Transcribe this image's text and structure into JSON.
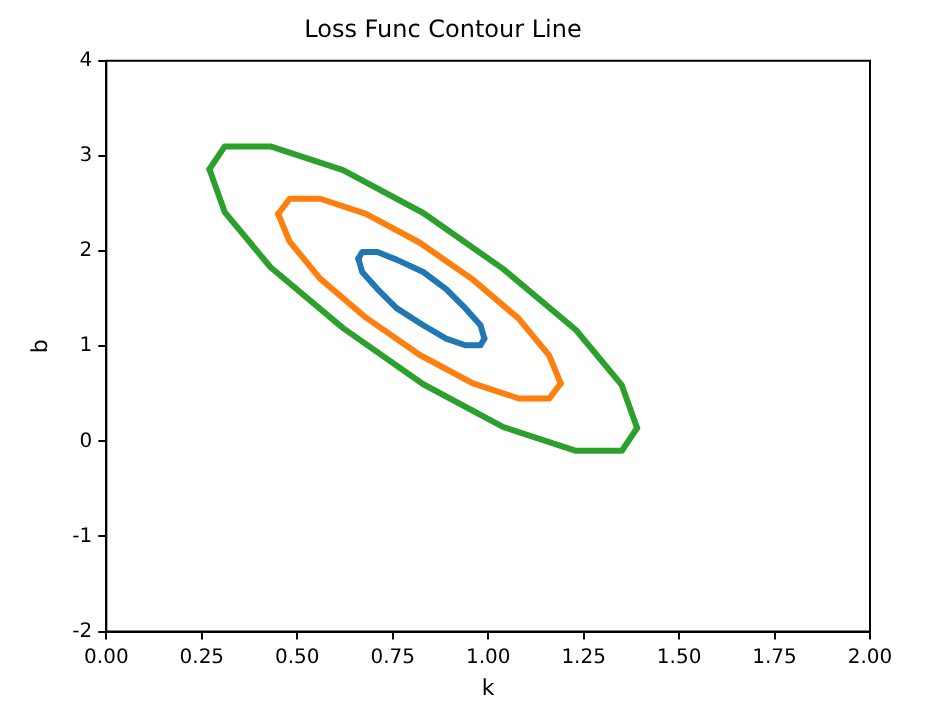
{
  "chart_data": {
    "type": "line",
    "title": "Loss Func Contour Line",
    "xlabel": "k",
    "ylabel": "b",
    "xlim": [
      0,
      2
    ],
    "xticks": [
      {
        "value": 0,
        "label": "0.00"
      },
      {
        "value": 0.25,
        "label": "0.25"
      },
      {
        "value": 0.5,
        "label": "0.50"
      },
      {
        "value": 0.75,
        "label": "0.75"
      },
      {
        "value": 1,
        "label": "1.00"
      },
      {
        "value": 1.25,
        "label": "1.25"
      },
      {
        "value": 1.5,
        "label": "1.50"
      },
      {
        "value": 1.75,
        "label": "1.75"
      },
      {
        "value": 2,
        "label": "2.00"
      }
    ],
    "ylim": [
      -2,
      4
    ],
    "yticks": [
      -2,
      -1,
      0,
      1,
      2,
      3,
      4
    ],
    "grid": false,
    "legend": false,
    "marker": "none",
    "line_style": "solid",
    "series": [
      {
        "color": "#1f77b4",
        "x": [
          0.99,
          0.98,
          0.94,
          0.89,
          0.83,
          0.76,
          0.71,
          0.67,
          0.66
        ],
        "values": [
          1.08,
          1.22,
          1.4,
          1.6,
          1.78,
          1.91,
          1.99,
          1.99,
          1.92
        ]
      },
      {
        "color": "#1f77b4",
        "x": [
          0.66,
          0.67,
          0.71,
          0.76,
          0.83,
          0.89,
          0.94,
          0.98,
          0.99
        ],
        "values": [
          1.92,
          1.78,
          1.6,
          1.4,
          1.22,
          1.08,
          1.01,
          1.01,
          1.08
        ]
      },
      {
        "color": "#ff7f0e",
        "x": [
          1.19,
          1.16,
          1.08,
          0.96,
          0.82,
          0.68,
          0.56,
          0.48,
          0.45
        ],
        "values": [
          0.61,
          0.9,
          1.29,
          1.7,
          2.09,
          2.39,
          2.55,
          2.55,
          2.39
        ]
      },
      {
        "color": "#ff7f0e",
        "x": [
          0.45,
          0.48,
          0.56,
          0.68,
          0.82,
          0.96,
          1.08,
          1.16,
          1.19
        ],
        "values": [
          2.39,
          2.1,
          1.71,
          1.3,
          0.91,
          0.61,
          0.45,
          0.45,
          0.61
        ]
      },
      {
        "color": "#2ca02c",
        "x": [
          1.39,
          1.35,
          1.23,
          1.04,
          0.83,
          0.62,
          0.43,
          0.31,
          0.27
        ],
        "values": [
          0.14,
          0.59,
          1.17,
          1.81,
          2.4,
          2.85,
          3.1,
          3.1,
          2.86
        ]
      },
      {
        "color": "#2ca02c",
        "x": [
          0.27,
          0.31,
          0.43,
          0.62,
          0.83,
          1.04,
          1.23,
          1.35,
          1.39
        ],
        "values": [
          2.86,
          2.41,
          1.83,
          1.19,
          0.6,
          0.15,
          -0.1,
          -0.1,
          0.14
        ]
      }
    ]
  }
}
